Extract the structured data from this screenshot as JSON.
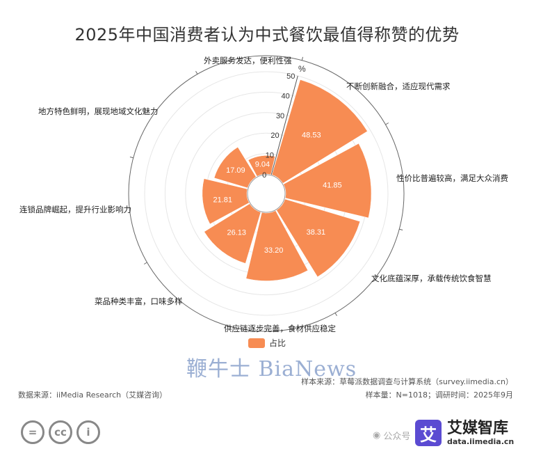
{
  "page": {
    "title": "2025年中国消费者认为中式餐饮最值得称赞的优势",
    "watermark": "鞭牛士 BiaNews",
    "source": "数据来源：iiMedia Research（艾媒咨询）",
    "sample_source": "样本来源：草莓派数据调查与计算系统（survey.iimedia.cn）",
    "sample_info": "样本量：N=1018；调研时间：2025年9月",
    "wechat_text": "公众号",
    "brand_icon_char": "艾",
    "brand_name": "艾媒智库",
    "brand_url": "data.iimedia.cn",
    "license_icons": [
      "equals-icon",
      "cc-icon",
      "person-icon"
    ],
    "license_glyphs": [
      "=",
      "cc",
      "i"
    ]
  },
  "chart_data": {
    "type": "polar-bar",
    "title": "2025年中国消费者认为中式餐饮最值得称赞的优势",
    "unit": "%",
    "rlim": [
      0,
      50
    ],
    "r_ticks": [
      0,
      10,
      20,
      30,
      40,
      50
    ],
    "grid": true,
    "legend": {
      "position": "bottom",
      "entries": [
        "占比"
      ]
    },
    "color": "#F78C53",
    "categories": [
      "不断创新融合，适应现代需求",
      "性价比普遍较高，满足大众消费",
      "文化底蕴深厚，承载传统饮食智慧",
      "供应链逐步完善，食材供应稳定",
      "菜品种类丰富，口味多样",
      "连锁品牌崛起，提升行业影响力",
      "地方特色鲜明，展现地域文化魅力",
      "外卖服务发达，便利性强"
    ],
    "series": [
      {
        "name": "占比",
        "values": [
          48.53,
          41.85,
          38.31,
          33.2,
          26.13,
          21.81,
          17.09,
          9.04
        ]
      }
    ]
  }
}
